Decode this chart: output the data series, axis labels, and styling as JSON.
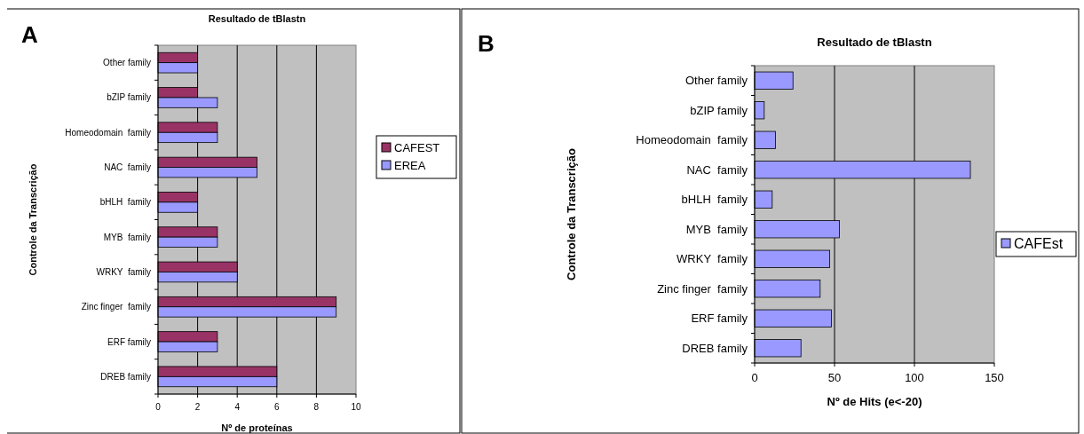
{
  "chart_data": [
    {
      "type": "bar",
      "orientation": "horizontal",
      "title": "Resultado de tBlastn",
      "xlabel": "Nº de proteínas",
      "ylabel": "Controle da Transcrição",
      "annotations": [
        "A"
      ],
      "categories": [
        "Other family",
        "bZIP family",
        "Homeodomain  family",
        "NAC  family",
        "bHLH  family",
        "MYB  family",
        "WRKY  family",
        "Zinc finger  family",
        "ERF family",
        "DREB family"
      ],
      "series": [
        {
          "name": "CAFEST",
          "color": "#993366",
          "values": [
            2,
            2,
            3,
            5,
            2,
            3,
            4,
            9,
            3,
            6
          ]
        },
        {
          "name": "EREA",
          "color": "#9999ff",
          "values": [
            2,
            3,
            3,
            5,
            2,
            3,
            4,
            9,
            3,
            6
          ]
        }
      ],
      "xlim": [
        0,
        10
      ],
      "xticks": [
        0,
        2,
        4,
        6,
        8,
        10
      ],
      "grid": "x",
      "legend": "right"
    },
    {
      "type": "bar",
      "orientation": "horizontal",
      "title": "Resultado de tBlastn",
      "xlabel": "Nº de Hits (e<-20)",
      "ylabel": "Controle da Transcrição",
      "annotations": [
        "B"
      ],
      "categories": [
        "Other family",
        "bZIP family",
        "Homeodomain  family",
        "NAC  family",
        "bHLH  family",
        "MYB  family",
        "WRKY  family",
        "Zinc finger  family",
        "ERF family",
        "DREB family"
      ],
      "series": [
        {
          "name": "CAFEst",
          "color": "#9999ff",
          "values": [
            24,
            6,
            13,
            135,
            11,
            53,
            47,
            41,
            48,
            29
          ]
        }
      ],
      "xlim": [
        0,
        150
      ],
      "xticks": [
        0,
        50,
        100,
        150
      ],
      "grid": "x",
      "legend": "right"
    }
  ]
}
